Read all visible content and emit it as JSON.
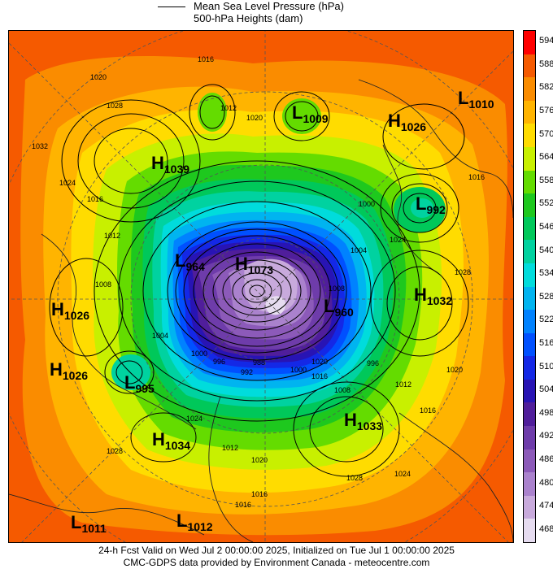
{
  "legend": {
    "line_label": "Mean Sea Level Pressure (hPa)",
    "fill_label": "500-hPa Heights (dam)"
  },
  "colorbar": {
    "levels": [
      {
        "label": "594",
        "color": "#ff0000"
      },
      {
        "label": "588",
        "color": "#f55a00"
      },
      {
        "label": "582",
        "color": "#fa8c00"
      },
      {
        "label": "576",
        "color": "#ffb400"
      },
      {
        "label": "570",
        "color": "#ffdc00"
      },
      {
        "label": "564",
        "color": "#c8f000"
      },
      {
        "label": "558",
        "color": "#64dc00"
      },
      {
        "label": "552",
        "color": "#1ec81e"
      },
      {
        "label": "546",
        "color": "#00c85a"
      },
      {
        "label": "540",
        "color": "#00d2a0"
      },
      {
        "label": "534",
        "color": "#00dcdc"
      },
      {
        "label": "528",
        "color": "#00b4f0"
      },
      {
        "label": "522",
        "color": "#0082ff"
      },
      {
        "label": "516",
        "color": "#0050ff"
      },
      {
        "label": "510",
        "color": "#1428e6"
      },
      {
        "label": "504",
        "color": "#2814b4"
      },
      {
        "label": "498",
        "color": "#501e9b"
      },
      {
        "label": "492",
        "color": "#6e3caa"
      },
      {
        "label": "486",
        "color": "#8c5ab9"
      },
      {
        "label": "480",
        "color": "#aa82cd"
      },
      {
        "label": "474",
        "color": "#c8aadc"
      },
      {
        "label": "468",
        "color": "#e6dcf0"
      }
    ]
  },
  "pressure_centers": [
    {
      "type": "H",
      "value": "1039"
    },
    {
      "type": "L",
      "value": "1009"
    },
    {
      "type": "H",
      "value": "1026"
    },
    {
      "type": "L",
      "value": "1010"
    },
    {
      "type": "L",
      "value": "992"
    },
    {
      "type": "H",
      "value": "1032"
    },
    {
      "type": "L",
      "value": "964"
    },
    {
      "type": "H",
      "value": "1073"
    },
    {
      "type": "L",
      "value": "960"
    },
    {
      "type": "H",
      "value": "1026"
    },
    {
      "type": "H",
      "value": "1026"
    },
    {
      "type": "L",
      "value": "995"
    },
    {
      "type": "H",
      "value": "1033"
    },
    {
      "type": "H",
      "value": "1034"
    },
    {
      "type": "L",
      "value": "1011"
    },
    {
      "type": "L",
      "value": "1012"
    }
  ],
  "isobar_labels": [
    "1020",
    "1028",
    "1032",
    "1024",
    "1016",
    "1012",
    "1008",
    "1004",
    "1000",
    "996",
    "992",
    "988",
    "1020",
    "1016",
    "1028",
    "1024",
    "1016",
    "1020",
    "1012",
    "1008",
    "1004",
    "1000",
    "996",
    "1000",
    "1028",
    "1024",
    "1016",
    "1020",
    "1016",
    "1012",
    "1024",
    "1028",
    "1012",
    "1016",
    "1020",
    "1008",
    "1016"
  ],
  "footer": {
    "line1": "24-h Fcst Valid on Wed Jul  2 00:00:00 2025, Initialized on Tue Jul  1 00:00:00 2025",
    "line2": "CMC-GDPS data provided by Environment Canada - meteocentre.com"
  }
}
